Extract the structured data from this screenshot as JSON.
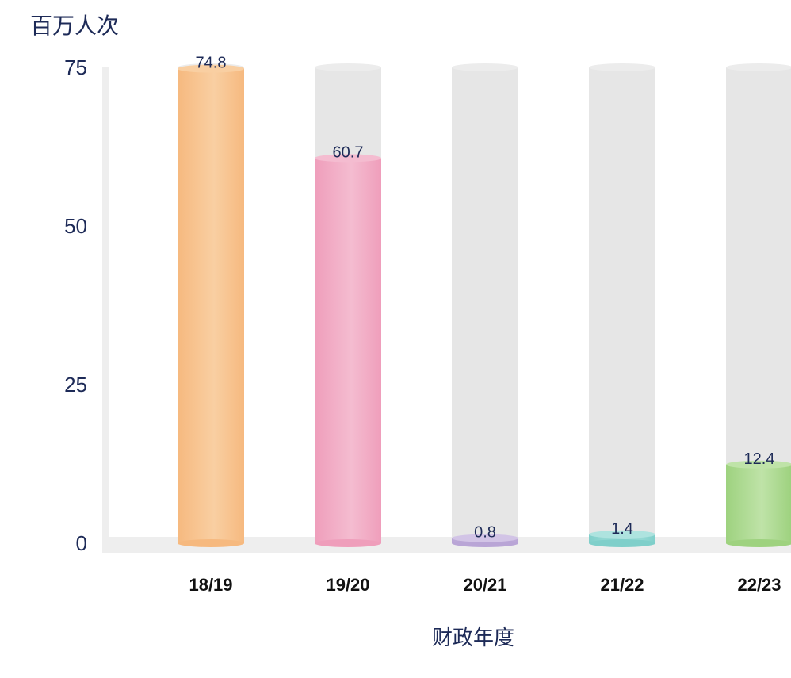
{
  "chart_data": {
    "type": "bar",
    "title": "",
    "ylabel": "百万人次",
    "xlabel": "财政年度",
    "categories": [
      "18/19",
      "19/20",
      "20/21",
      "21/22",
      "22/23"
    ],
    "values": [
      74.8,
      60.7,
      0.8,
      1.4,
      12.4
    ],
    "value_labels": [
      "74.8",
      "60.7",
      "0.8",
      "1.4",
      "12.4"
    ],
    "ylim": [
      0,
      75
    ],
    "yticks": [
      "0",
      "25",
      "50",
      "75"
    ],
    "legend": "none",
    "grid": false,
    "bar_colors": [
      "#f6b97f",
      "#ef9ebb",
      "#b9a5d6",
      "#7fcfca",
      "#9ed27f"
    ],
    "bar_highlight_colors": [
      "#f9cfa2",
      "#f4bcd0",
      "#d2c4e6",
      "#aee3df",
      "#bfe3a8"
    ],
    "track_color": "#e6e6e6",
    "axis_color": "#eeeeee",
    "label_color": "#1d2a57"
  }
}
